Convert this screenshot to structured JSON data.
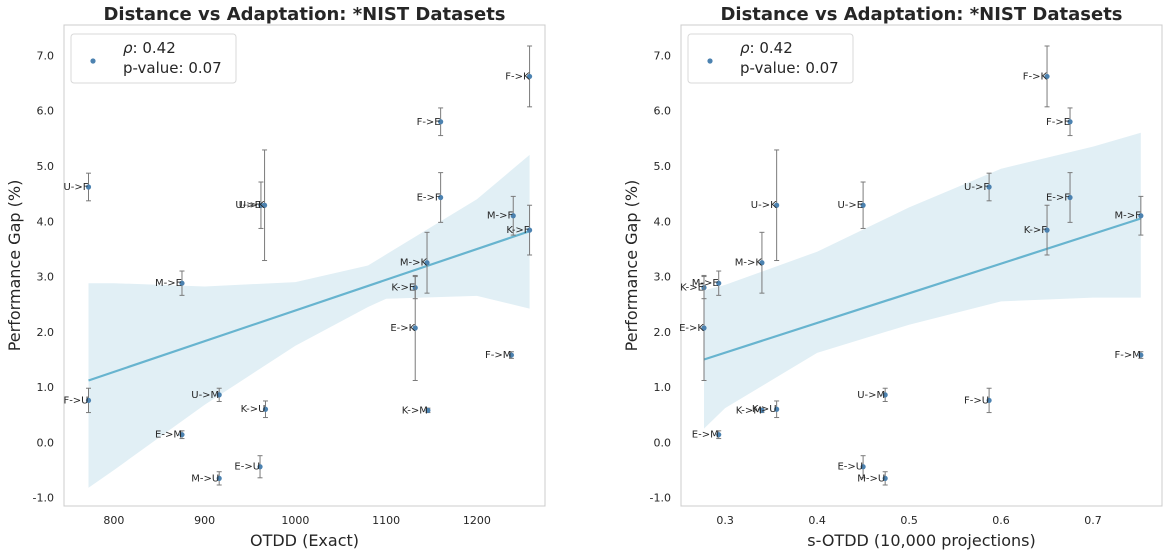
{
  "chart_data": [
    {
      "type": "scatter",
      "title": "Distance vs Adaptation: *NIST Datasets",
      "xlabel": "OTDD (Exact)",
      "ylabel": "Performance Gap (%)",
      "xlim": [
        745,
        1275
      ],
      "ylim": [
        -1.15,
        7.55
      ],
      "xticks": [
        800,
        900,
        1000,
        1100,
        1200
      ],
      "yticks": [
        -1.0,
        0.0,
        1.0,
        2.0,
        3.0,
        4.0,
        5.0,
        6.0,
        7.0
      ],
      "ytick_labels": [
        "-1.0",
        "0.0",
        "1.0",
        "2.0",
        "3.0",
        "4.0",
        "5.0",
        "6.0",
        "7.0"
      ],
      "xtick_labels": [
        "800",
        "900",
        "1000",
        "1100",
        "1200"
      ],
      "legend": {
        "position": "top-left",
        "rho_symbol": "ρ",
        "rho_text": ": 0.42",
        "pvalue_text": "p-value: 0.07"
      },
      "regression": {
        "x": [
          772,
          1258
        ],
        "y": [
          1.12,
          3.82
        ]
      },
      "band": {
        "x": [
          772,
          800,
          900,
          1000,
          1080,
          1100,
          1200,
          1258
        ],
        "upper": [
          2.88,
          2.88,
          2.82,
          2.9,
          3.2,
          3.4,
          4.4,
          5.2
        ],
        "lower": [
          -0.82,
          -0.5,
          0.68,
          1.75,
          2.45,
          2.6,
          2.65,
          2.42
        ]
      },
      "points": [
        {
          "label": "F->K",
          "x": 1258,
          "y": 6.62,
          "err": 0.55
        },
        {
          "label": "F->E",
          "x": 1160,
          "y": 5.8,
          "err": 0.25
        },
        {
          "label": "U->F",
          "x": 772,
          "y": 4.62,
          "err": 0.25
        },
        {
          "label": "U->E",
          "x": 962,
          "y": 4.29,
          "err": 0.42
        },
        {
          "label": "U->K",
          "x": 966,
          "y": 4.29,
          "err": 1.0
        },
        {
          "label": "E->F",
          "x": 1160,
          "y": 4.43,
          "err": 0.45
        },
        {
          "label": "M->F",
          "x": 1240,
          "y": 4.1,
          "err": 0.35
        },
        {
          "label": "K->F",
          "x": 1258,
          "y": 3.84,
          "err": 0.45
        },
        {
          "label": "M->E",
          "x": 875,
          "y": 2.88,
          "err": 0.22
        },
        {
          "label": "M->K",
          "x": 1145,
          "y": 3.25,
          "err": 0.55
        },
        {
          "label": "K->E",
          "x": 1132,
          "y": 2.8,
          "err": 0.2
        },
        {
          "label": "E->K",
          "x": 1132,
          "y": 2.07,
          "err": 0.95
        },
        {
          "label": "F->M",
          "x": 1238,
          "y": 1.58,
          "err": 0.06
        },
        {
          "label": "F->U",
          "x": 772,
          "y": 0.76,
          "err": 0.22
        },
        {
          "label": "U->M",
          "x": 916,
          "y": 0.86,
          "err": 0.12
        },
        {
          "label": "K->U",
          "x": 967,
          "y": 0.6,
          "err": 0.15
        },
        {
          "label": "K->M",
          "x": 1146,
          "y": 0.58,
          "err": 0.04
        },
        {
          "label": "E->M",
          "x": 875,
          "y": 0.14,
          "err": 0.07
        },
        {
          "label": "E->U",
          "x": 961,
          "y": -0.44,
          "err": 0.2
        },
        {
          "label": "M->U",
          "x": 916,
          "y": -0.65,
          "err": 0.12
        }
      ]
    },
    {
      "type": "scatter",
      "title": "Distance vs Adaptation: *NIST Datasets",
      "xlabel": "s-OTDD (10,000 projections)",
      "ylabel": "Performance Gap (%)",
      "xlim": [
        0.252,
        0.775
      ],
      "ylim": [
        -1.15,
        7.55
      ],
      "xticks": [
        0.3,
        0.4,
        0.5,
        0.6,
        0.7
      ],
      "xtick_labels": [
        "0.3",
        "0.4",
        "0.5",
        "0.6",
        "0.7"
      ],
      "yticks": [
        -1.0,
        0.0,
        1.0,
        2.0,
        3.0,
        4.0,
        5.0,
        6.0,
        7.0
      ],
      "ytick_labels": [
        "-1.0",
        "0.0",
        "1.0",
        "2.0",
        "3.0",
        "4.0",
        "5.0",
        "6.0",
        "7.0"
      ],
      "legend": {
        "position": "top-left",
        "rho_symbol": "ρ",
        "rho_text": ": 0.42",
        "pvalue_text": "p-value: 0.07"
      },
      "regression": {
        "x": [
          0.277,
          0.752
        ],
        "y": [
          1.5,
          4.05
        ]
      },
      "band": {
        "x": [
          0.277,
          0.3,
          0.4,
          0.5,
          0.6,
          0.7,
          0.752
        ],
        "upper": [
          2.75,
          2.85,
          3.45,
          4.25,
          4.95,
          5.35,
          5.6
        ],
        "lower": [
          0.25,
          0.62,
          1.62,
          2.13,
          2.55,
          2.62,
          2.62
        ]
      },
      "points": [
        {
          "label": "F->K",
          "x": 0.65,
          "y": 6.62,
          "err": 0.55
        },
        {
          "label": "F->E",
          "x": 0.675,
          "y": 5.8,
          "err": 0.25
        },
        {
          "label": "U->K",
          "x": 0.356,
          "y": 4.29,
          "err": 1.0
        },
        {
          "label": "U->E",
          "x": 0.45,
          "y": 4.29,
          "err": 0.42
        },
        {
          "label": "U->F",
          "x": 0.587,
          "y": 4.62,
          "err": 0.25
        },
        {
          "label": "E->F",
          "x": 0.675,
          "y": 4.43,
          "err": 0.45
        },
        {
          "label": "K->F",
          "x": 0.65,
          "y": 3.84,
          "err": 0.45
        },
        {
          "label": "M->F",
          "x": 0.752,
          "y": 4.1,
          "err": 0.35
        },
        {
          "label": "M->K",
          "x": 0.34,
          "y": 3.25,
          "err": 0.55
        },
        {
          "label": "M->E",
          "x": 0.293,
          "y": 2.88,
          "err": 0.22
        },
        {
          "label": "K->E",
          "x": 0.277,
          "y": 2.8,
          "err": 0.2
        },
        {
          "label": "E->K",
          "x": 0.277,
          "y": 2.07,
          "err": 0.95
        },
        {
          "label": "F->M",
          "x": 0.752,
          "y": 1.58,
          "err": 0.06
        },
        {
          "label": "U->M",
          "x": 0.474,
          "y": 0.86,
          "err": 0.12
        },
        {
          "label": "F->U",
          "x": 0.587,
          "y": 0.76,
          "err": 0.22
        },
        {
          "label": "K->M",
          "x": 0.34,
          "y": 0.58,
          "err": 0.04
        },
        {
          "label": "K->U",
          "x": 0.356,
          "y": 0.6,
          "err": 0.15
        },
        {
          "label": "E->M",
          "x": 0.293,
          "y": 0.14,
          "err": 0.07
        },
        {
          "label": "E->U",
          "x": 0.45,
          "y": -0.44,
          "err": 0.2
        },
        {
          "label": "M->U",
          "x": 0.474,
          "y": -0.65,
          "err": 0.12
        }
      ]
    }
  ],
  "colors": {
    "point": "#4c82b0",
    "regression": "#67b4cf",
    "band": "#e1eff5",
    "errorbar": "#7a7a7a",
    "text": "#262626",
    "spine": "#cccccc",
    "title": "#262626"
  }
}
